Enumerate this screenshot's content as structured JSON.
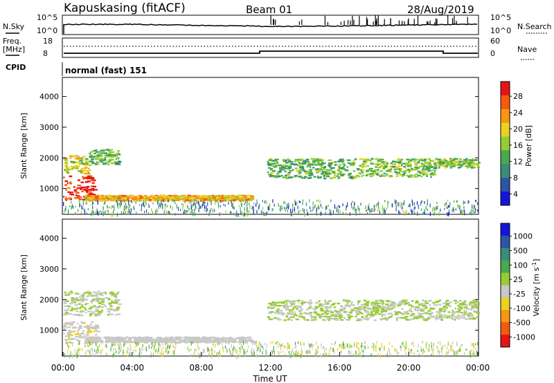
{
  "header": {
    "station": "Kapuskasing (fitACF)",
    "beam": "Beam 01",
    "date": "28/Aug/2019"
  },
  "noise_panel": {
    "left_label": "N.Sky",
    "left_ticks": [
      "10^5",
      "10^0"
    ],
    "right_ticks": [
      "10^5",
      "10^0"
    ],
    "right_label": "N.Search"
  },
  "freq_panel": {
    "left_label_1": "Freq.",
    "left_label_2": "[MHz]",
    "left_ticks": [
      "18",
      "8"
    ],
    "right_ticks": [
      "60",
      "0"
    ],
    "right_label": "Nave"
  },
  "cpid_panel": {
    "label": "CPID",
    "program": "normal (fast) 151"
  },
  "colors": {
    "power_scale": [
      "#1414dc",
      "#2d55a5",
      "#3c8c78",
      "#46aa50",
      "#96cd32",
      "#ebd21e",
      "#fa9614",
      "#f55a0f",
      "#e61414"
    ],
    "velocity_scale": [
      "#e61414",
      "#f55a0f",
      "#fa9614",
      "#ebd21e",
      "#c8c8c8",
      "#96cd32",
      "#46aa50",
      "#3c8c78",
      "#2d55a5",
      "#1414dc"
    ],
    "ground_scatter": "#bebebe"
  },
  "chart_data": [
    {
      "type": "heatmap",
      "title": "",
      "xlabel": "Time UT",
      "ylabel": "Slant Range [km]",
      "xlim": [
        0,
        24
      ],
      "ylim": [
        180,
        4600
      ],
      "x_ticks": [
        "00:00",
        "04:00",
        "08:00",
        "12:00",
        "16:00",
        "20:00",
        "00:00"
      ],
      "y_ticks": [
        "1000",
        "2000",
        "3000",
        "4000"
      ],
      "colorbar": {
        "label": "Power [dB]",
        "ticks": [
          "28",
          "24",
          "20",
          "16",
          "12",
          "8",
          "4"
        ],
        "range": [
          0,
          30
        ]
      },
      "features": [
        {
          "t": [
            0.0,
            1.8
          ],
          "range": [
            650,
            1450
          ],
          "value": 28
        },
        {
          "t": [
            0.0,
            1.5
          ],
          "range": [
            1500,
            2100
          ],
          "value": 16
        },
        {
          "t": [
            1.5,
            3.2
          ],
          "range": [
            1800,
            2300
          ],
          "value": 12
        },
        {
          "t": [
            1.2,
            11.0
          ],
          "range": [
            620,
            800
          ],
          "value": 20
        },
        {
          "t": [
            11.8,
            17.0
          ],
          "range": [
            1350,
            2000
          ],
          "value": 12
        },
        {
          "t": [
            17.0,
            21.5
          ],
          "range": [
            1400,
            2000
          ],
          "value": 14
        },
        {
          "t": [
            21.5,
            24.0
          ],
          "range": [
            1700,
            2000
          ],
          "value": 14
        }
      ]
    },
    {
      "type": "heatmap",
      "title": "",
      "xlabel": "Time UT",
      "ylabel": "Slant Range [km]",
      "xlim": [
        0,
        24
      ],
      "ylim": [
        180,
        4600
      ],
      "x_ticks": [
        "00:00",
        "04:00",
        "08:00",
        "12:00",
        "16:00",
        "20:00",
        "00:00"
      ],
      "y_ticks": [
        "1000",
        "2000",
        "3000",
        "4000"
      ],
      "colorbar": {
        "label": "Velocity [m s^-1]",
        "ticks": [
          "1000",
          "500",
          "100",
          "25",
          "-25",
          "-100",
          "-500",
          "-1000"
        ],
        "range": [
          -1200,
          1200
        ]
      },
      "features": [
        {
          "t": [
            0.0,
            2.0
          ],
          "range": [
            600,
            1300
          ],
          "value": -200
        },
        {
          "t": [
            0.0,
            3.2
          ],
          "range": [
            1500,
            2300
          ],
          "value": 0
        },
        {
          "t": [
            1.2,
            11.0
          ],
          "range": [
            620,
            800
          ],
          "value": -100
        },
        {
          "t": [
            11.8,
            24.0
          ],
          "range": [
            1350,
            2000
          ],
          "value": 0
        }
      ]
    }
  ]
}
